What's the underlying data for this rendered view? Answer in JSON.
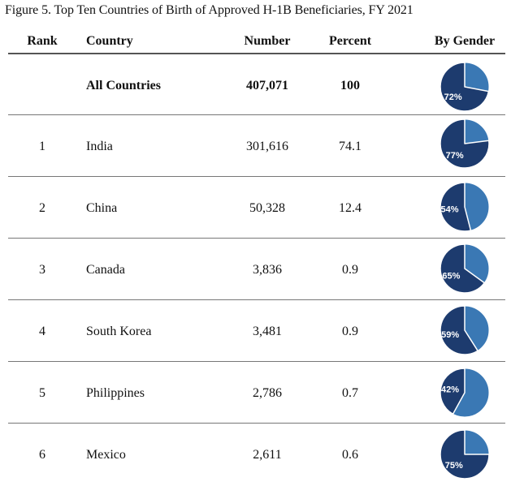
{
  "caption": "Figure 5. Top Ten Countries of Birth of Approved H-1B Beneficiaries, FY 2021",
  "columns": {
    "rank": "Rank",
    "country": "Country",
    "number": "Number",
    "percent": "Percent",
    "gender": "By Gender"
  },
  "colors": {
    "male": "#1d3b6e",
    "female": "#3a78b4",
    "pie_border": "#ffffff",
    "pie_label": "#ffffff"
  },
  "rows": [
    {
      "rank": "",
      "country": "All Countries",
      "number": "407,071",
      "percent": "100",
      "male_pct": 72,
      "male_label": "72%"
    },
    {
      "rank": "1",
      "country": "India",
      "number": "301,616",
      "percent": "74.1",
      "male_pct": 77,
      "male_label": "77%"
    },
    {
      "rank": "2",
      "country": "China",
      "number": "50,328",
      "percent": "12.4",
      "male_pct": 54,
      "male_label": "54%"
    },
    {
      "rank": "3",
      "country": "Canada",
      "number": "3,836",
      "percent": "0.9",
      "male_pct": 65,
      "male_label": "65%"
    },
    {
      "rank": "4",
      "country": "South Korea",
      "number": "3,481",
      "percent": "0.9",
      "male_pct": 59,
      "male_label": "59%"
    },
    {
      "rank": "5",
      "country": "Philippines",
      "number": "2,786",
      "percent": "0.7",
      "male_pct": 42,
      "male_label": "42%"
    },
    {
      "rank": "6",
      "country": "Mexico",
      "number": "2,611",
      "percent": "0.6",
      "male_pct": 75,
      "male_label": "75%"
    }
  ]
}
